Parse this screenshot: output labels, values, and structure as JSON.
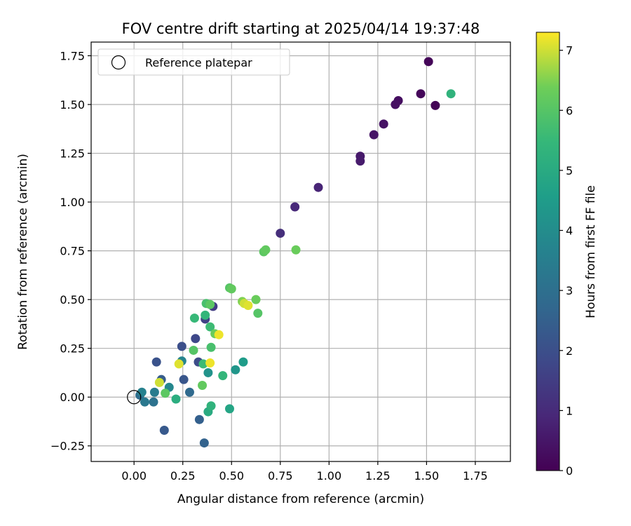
{
  "chart_data": {
    "type": "scatter",
    "title": "FOV centre drift starting at 2025/04/14 19:37:48",
    "xlabel": "Angular distance from reference (arcmin)",
    "ylabel": "Rotation from reference (arcmin)",
    "xlim": [
      -0.22,
      1.93
    ],
    "ylim": [
      -0.33,
      1.82
    ],
    "xticks": [
      0.0,
      0.25,
      0.5,
      0.75,
      1.0,
      1.25,
      1.5,
      1.75
    ],
    "xtick_labels": [
      "0.00",
      "0.25",
      "0.50",
      "0.75",
      "1.00",
      "1.25",
      "1.50",
      "1.75"
    ],
    "yticks": [
      -0.25,
      0.0,
      0.25,
      0.5,
      0.75,
      1.0,
      1.25,
      1.5,
      1.75
    ],
    "ytick_labels": [
      "−0.25",
      "0.00",
      "0.25",
      "0.50",
      "0.75",
      "1.00",
      "1.25",
      "1.50",
      "1.75"
    ],
    "grid": true,
    "legend": {
      "position": "top-left",
      "entries": [
        "Reference platepar"
      ]
    },
    "reference_point": {
      "x": 0.0,
      "y": 0.0,
      "marker": "open-circle"
    },
    "colorbar": {
      "label": "Hours from first FF file",
      "range": [
        0,
        7.3
      ],
      "ticks": [
        0,
        1,
        2,
        3,
        4,
        5,
        6,
        7
      ],
      "colormap": "viridis",
      "position": "right"
    },
    "points": [
      {
        "x": 1.51,
        "y": 1.72,
        "c": 0.1
      },
      {
        "x": 1.47,
        "y": 1.555,
        "c": 0.15
      },
      {
        "x": 1.545,
        "y": 1.495,
        "c": 0.05
      },
      {
        "x": 1.355,
        "y": 1.52,
        "c": 0.3
      },
      {
        "x": 1.34,
        "y": 1.5,
        "c": 0.35
      },
      {
        "x": 1.28,
        "y": 1.4,
        "c": 0.4
      },
      {
        "x": 1.23,
        "y": 1.345,
        "c": 0.45
      },
      {
        "x": 1.16,
        "y": 1.235,
        "c": 0.55
      },
      {
        "x": 1.16,
        "y": 1.21,
        "c": 0.6
      },
      {
        "x": 0.945,
        "y": 1.075,
        "c": 0.85
      },
      {
        "x": 0.825,
        "y": 0.975,
        "c": 0.95
      },
      {
        "x": 0.75,
        "y": 0.84,
        "c": 1.1
      },
      {
        "x": 0.405,
        "y": 0.465,
        "c": 1.5
      },
      {
        "x": 0.365,
        "y": 0.4,
        "c": 1.6
      },
      {
        "x": 0.315,
        "y": 0.3,
        "c": 1.8
      },
      {
        "x": 0.245,
        "y": 0.26,
        "c": 2.0
      },
      {
        "x": 0.33,
        "y": 0.18,
        "c": 1.9
      },
      {
        "x": 0.115,
        "y": 0.18,
        "c": 2.1
      },
      {
        "x": 0.255,
        "y": 0.09,
        "c": 2.2
      },
      {
        "x": 0.14,
        "y": 0.09,
        "c": 2.4
      },
      {
        "x": 0.155,
        "y": -0.17,
        "c": 2.3
      },
      {
        "x": 0.335,
        "y": -0.115,
        "c": 2.5
      },
      {
        "x": 0.36,
        "y": -0.235,
        "c": 2.6
      },
      {
        "x": 0.285,
        "y": 0.025,
        "c": 2.8
      },
      {
        "x": 0.03,
        "y": 0.01,
        "c": 2.9
      },
      {
        "x": 0.1,
        "y": -0.025,
        "c": 3.1
      },
      {
        "x": 0.055,
        "y": -0.025,
        "c": 3.3
      },
      {
        "x": 0.105,
        "y": 0.025,
        "c": 3.4
      },
      {
        "x": 0.04,
        "y": 0.025,
        "c": 3.6
      },
      {
        "x": 0.18,
        "y": 0.05,
        "c": 3.8
      },
      {
        "x": 0.245,
        "y": 0.185,
        "c": 3.7
      },
      {
        "x": 0.38,
        "y": 0.125,
        "c": 4.2
      },
      {
        "x": 0.52,
        "y": 0.14,
        "c": 4.3
      },
      {
        "x": 0.56,
        "y": 0.18,
        "c": 4.5
      },
      {
        "x": 0.49,
        "y": -0.06,
        "c": 4.8
      },
      {
        "x": 0.38,
        "y": -0.075,
        "c": 5.0
      },
      {
        "x": 0.215,
        "y": -0.01,
        "c": 5.1
      },
      {
        "x": 0.395,
        "y": -0.045,
        "c": 5.3
      },
      {
        "x": 0.455,
        "y": 0.11,
        "c": 5.4
      },
      {
        "x": 0.355,
        "y": 0.17,
        "c": 5.6
      },
      {
        "x": 0.395,
        "y": 0.255,
        "c": 5.8
      },
      {
        "x": 0.39,
        "y": 0.36,
        "c": 5.6
      },
      {
        "x": 0.31,
        "y": 0.405,
        "c": 5.5
      },
      {
        "x": 0.365,
        "y": 0.42,
        "c": 5.4
      },
      {
        "x": 0.37,
        "y": 0.48,
        "c": 5.8
      },
      {
        "x": 0.39,
        "y": 0.475,
        "c": 6.1
      },
      {
        "x": 0.305,
        "y": 0.24,
        "c": 6.0
      },
      {
        "x": 0.415,
        "y": 0.325,
        "c": 6.3
      },
      {
        "x": 0.35,
        "y": 0.06,
        "c": 6.2
      },
      {
        "x": 0.16,
        "y": 0.02,
        "c": 6.1
      },
      {
        "x": 0.49,
        "y": 0.56,
        "c": 6.0
      },
      {
        "x": 0.5,
        "y": 0.555,
        "c": 6.2
      },
      {
        "x": 0.555,
        "y": 0.49,
        "c": 6.5
      },
      {
        "x": 0.625,
        "y": 0.5,
        "c": 6.3
      },
      {
        "x": 0.635,
        "y": 0.43,
        "c": 6.0
      },
      {
        "x": 0.665,
        "y": 0.745,
        "c": 6.1
      },
      {
        "x": 0.675,
        "y": 0.755,
        "c": 6.2
      },
      {
        "x": 0.83,
        "y": 0.755,
        "c": 6.3
      },
      {
        "x": 1.625,
        "y": 1.555,
        "c": 5.3
      },
      {
        "x": 0.565,
        "y": 0.48,
        "c": 7.0
      },
      {
        "x": 0.585,
        "y": 0.47,
        "c": 7.1
      },
      {
        "x": 0.435,
        "y": 0.32,
        "c": 7.2
      },
      {
        "x": 0.39,
        "y": 0.175,
        "c": 7.2
      },
      {
        "x": 0.23,
        "y": 0.17,
        "c": 7.1
      },
      {
        "x": 0.13,
        "y": 0.075,
        "c": 7.0
      }
    ]
  }
}
